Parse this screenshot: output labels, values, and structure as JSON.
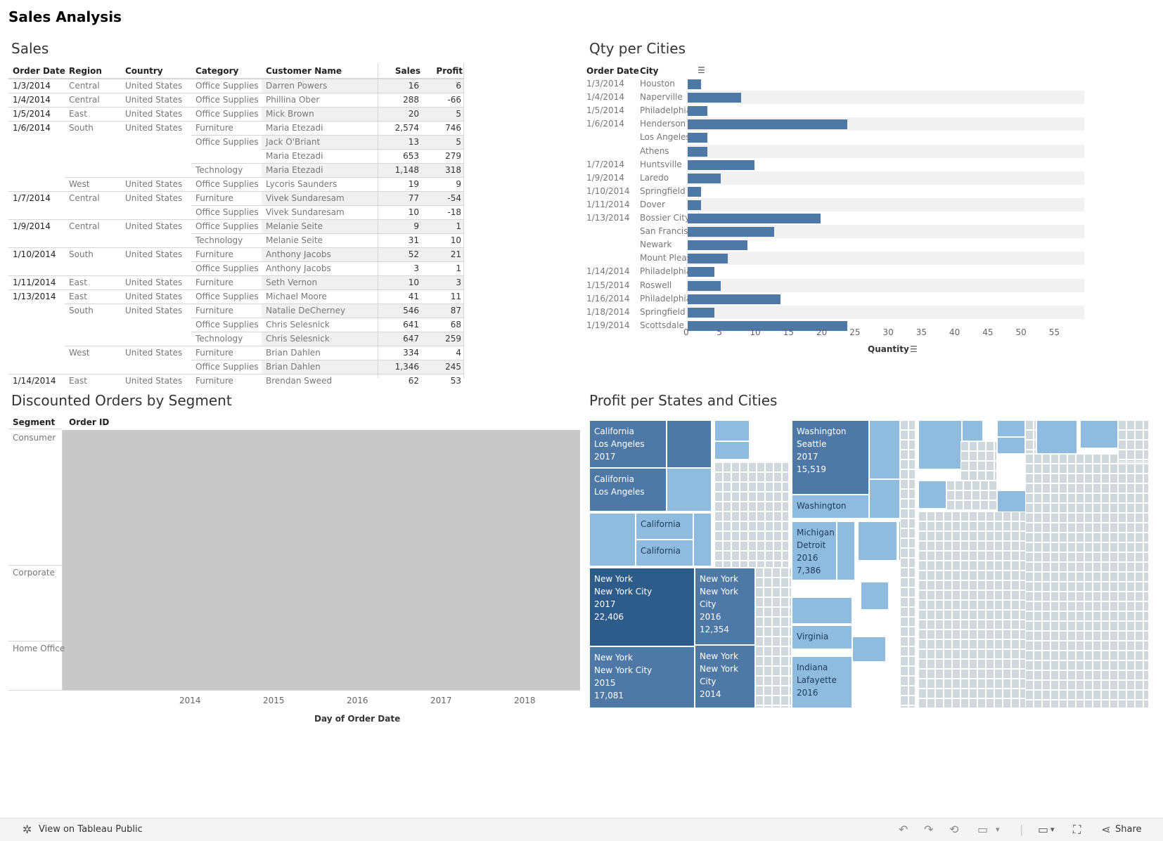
{
  "dashboard_title": "Sales Analysis",
  "sales": {
    "title": "Sales",
    "headers": [
      "Order Date",
      "Region",
      "Country",
      "Category",
      "Customer Name",
      "Sales",
      "Profit"
    ],
    "rows": [
      {
        "date": "1/3/2014",
        "region": "Central",
        "country": "United States",
        "category": "Office Supplies",
        "customer": "Darren Powers",
        "sales": "16",
        "profit": "6"
      },
      {
        "date": "1/4/2014",
        "region": "Central",
        "country": "United States",
        "category": "Office Supplies",
        "customer": "Phillina Ober",
        "sales": "288",
        "profit": "-66"
      },
      {
        "date": "1/5/2014",
        "region": "East",
        "country": "United States",
        "category": "Office Supplies",
        "customer": "Mick Brown",
        "sales": "20",
        "profit": "5"
      },
      {
        "date": "1/6/2014",
        "region": "South",
        "country": "United States",
        "category": "Furniture",
        "customer": "Maria Etezadi",
        "sales": "2,574",
        "profit": "746"
      },
      {
        "date": "",
        "region": "",
        "country": "",
        "category": "Office Supplies",
        "customer": "Jack O'Briant",
        "sales": "13",
        "profit": "5"
      },
      {
        "date": "",
        "region": "",
        "country": "",
        "category": "",
        "customer": "Maria Etezadi",
        "sales": "653",
        "profit": "279"
      },
      {
        "date": "",
        "region": "",
        "country": "",
        "category": "Technology",
        "customer": "Maria Etezadi",
        "sales": "1,148",
        "profit": "318"
      },
      {
        "date": "",
        "region": "West",
        "country": "United States",
        "category": "Office Supplies",
        "customer": "Lycoris Saunders",
        "sales": "19",
        "profit": "9"
      },
      {
        "date": "1/7/2014",
        "region": "Central",
        "country": "United States",
        "category": "Furniture",
        "customer": "Vivek Sundaresam",
        "sales": "77",
        "profit": "-54"
      },
      {
        "date": "",
        "region": "",
        "country": "",
        "category": "Office Supplies",
        "customer": "Vivek Sundaresam",
        "sales": "10",
        "profit": "-18"
      },
      {
        "date": "1/9/2014",
        "region": "Central",
        "country": "United States",
        "category": "Office Supplies",
        "customer": "Melanie Seite",
        "sales": "9",
        "profit": "1"
      },
      {
        "date": "",
        "region": "",
        "country": "",
        "category": "Technology",
        "customer": "Melanie Seite",
        "sales": "31",
        "profit": "10"
      },
      {
        "date": "1/10/2014",
        "region": "South",
        "country": "United States",
        "category": "Furniture",
        "customer": "Anthony Jacobs",
        "sales": "52",
        "profit": "21"
      },
      {
        "date": "",
        "region": "",
        "country": "",
        "category": "Office Supplies",
        "customer": "Anthony Jacobs",
        "sales": "3",
        "profit": "1"
      },
      {
        "date": "1/11/2014",
        "region": "East",
        "country": "United States",
        "category": "Furniture",
        "customer": "Seth Vernon",
        "sales": "10",
        "profit": "3"
      },
      {
        "date": "1/13/2014",
        "region": "East",
        "country": "United States",
        "category": "Office Supplies",
        "customer": "Michael Moore",
        "sales": "41",
        "profit": "11"
      },
      {
        "date": "",
        "region": "South",
        "country": "United States",
        "category": "Furniture",
        "customer": "Natalie DeCherney",
        "sales": "546",
        "profit": "87"
      },
      {
        "date": "",
        "region": "",
        "country": "",
        "category": "Office Supplies",
        "customer": "Chris Selesnick",
        "sales": "641",
        "profit": "68"
      },
      {
        "date": "",
        "region": "",
        "country": "",
        "category": "Technology",
        "customer": "Chris Selesnick",
        "sales": "647",
        "profit": "259"
      },
      {
        "date": "",
        "region": "West",
        "country": "United States",
        "category": "Furniture",
        "customer": "Brian Dahlen",
        "sales": "334",
        "profit": "4"
      },
      {
        "date": "",
        "region": "",
        "country": "",
        "category": "Office Supplies",
        "customer": "Brian Dahlen",
        "sales": "1,346",
        "profit": "245"
      },
      {
        "date": "1/14/2014",
        "region": "East",
        "country": "United States",
        "category": "Furniture",
        "customer": "Brendan Sweed",
        "sales": "62",
        "profit": "53"
      }
    ]
  },
  "qty": {
    "title": "Qty per Cities",
    "headers": [
      "Order Date",
      "City"
    ],
    "axis_label": "Quantity",
    "rows": [
      {
        "date": "1/3/2014",
        "city": "Houston",
        "qty": 2
      },
      {
        "date": "1/4/2014",
        "city": "Naperville",
        "qty": 8
      },
      {
        "date": "1/5/2014",
        "city": "Philadelphia",
        "qty": 3
      },
      {
        "date": "1/6/2014",
        "city": "Henderson",
        "qty": 24
      },
      {
        "date": "",
        "city": "Los Angeles",
        "qty": 3
      },
      {
        "date": "",
        "city": "Athens",
        "qty": 3
      },
      {
        "date": "1/7/2014",
        "city": "Huntsville",
        "qty": 10
      },
      {
        "date": "1/9/2014",
        "city": "Laredo",
        "qty": 5
      },
      {
        "date": "1/10/2014",
        "city": "Springfield",
        "qty": 2
      },
      {
        "date": "1/11/2014",
        "city": "Dover",
        "qty": 2
      },
      {
        "date": "1/13/2014",
        "city": "Bossier City",
        "qty": 20
      },
      {
        "date": "",
        "city": "San Francisco",
        "qty": 13
      },
      {
        "date": "",
        "city": "Newark",
        "qty": 9
      },
      {
        "date": "",
        "city": "Mount Pleasant",
        "qty": 6
      },
      {
        "date": "1/14/2014",
        "city": "Philadelphia",
        "qty": 4
      },
      {
        "date": "1/15/2014",
        "city": "Roswell",
        "qty": 5
      },
      {
        "date": "1/16/2014",
        "city": "Philadelphia",
        "qty": 14
      },
      {
        "date": "1/18/2014",
        "city": "Springfield",
        "qty": 4
      },
      {
        "date": "1/19/2014",
        "city": "Scottsdale",
        "qty": 24
      }
    ],
    "ticks": [
      "0",
      "5",
      "10",
      "15",
      "20",
      "25",
      "30",
      "35",
      "40",
      "45",
      "50",
      "55"
    ]
  },
  "discounted": {
    "title": "Discounted Orders by Segment",
    "col_headers": [
      "Segment",
      "Order ID"
    ],
    "segments": [
      "Consumer",
      "Corporate",
      "Home Office"
    ],
    "years": [
      "2014",
      "2015",
      "2016",
      "2017",
      "2018"
    ],
    "axis_label": "Day of Order Date"
  },
  "treemap": {
    "title": "Profit per States and Cities",
    "labels": {
      "ca1": [
        "California",
        "Los Angeles",
        "2017"
      ],
      "ca2": [
        "California",
        "Los Angeles"
      ],
      "ca3": [
        "California"
      ],
      "ca4": [
        "California"
      ],
      "wa1": [
        "Washington",
        "Seattle",
        "2017",
        "15,519"
      ],
      "wa2": [
        "Washington"
      ],
      "mi1": [
        "Michigan",
        "Detroit",
        "2016",
        "7,386"
      ],
      "va1": [
        "Virginia"
      ],
      "in1": [
        "Indiana",
        "Lafayette",
        "2016"
      ],
      "ny1": [
        "New York",
        "New York City",
        "2017",
        "22,406"
      ],
      "ny2": [
        "New York",
        "New York City",
        "2015",
        "17,081"
      ],
      "ny3": [
        "New York",
        "New York",
        "City",
        "2016",
        "12,354"
      ],
      "ny4": [
        "New York",
        "New York",
        "City",
        "2014"
      ]
    }
  },
  "footer": {
    "view_label": "View on Tableau Public",
    "share_label": "Share"
  },
  "colors": {
    "bar": "#4e79a7",
    "tm_dark": "#2e5c8a",
    "tm_mid": "#4e79a7",
    "tm_light": "#8fbcde",
    "tm_pale": "#cfd8dc"
  }
}
